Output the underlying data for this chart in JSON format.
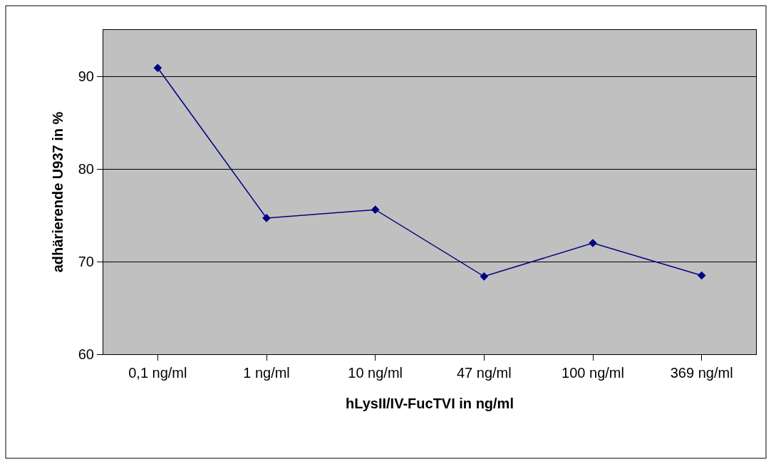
{
  "chart_data": {
    "type": "line",
    "xlabel": "hLysII/IV-FucTVI in ng/ml",
    "ylabel": "adhärierende U937 in %",
    "categories": [
      "0,1 ng/ml",
      "1 ng/ml",
      "10 ng/ml",
      "47 ng/ml",
      "100 ng/ml",
      "369 ng/ml"
    ],
    "series": [
      {
        "color": "#000080",
        "values": [
          90.9,
          74.7,
          75.6,
          68.4,
          72.0,
          68.5
        ]
      }
    ],
    "ylim": [
      60,
      95
    ],
    "yticks": [
      60,
      70,
      80,
      90
    ],
    "grid": "y",
    "marker": "diamond",
    "line_style": "solid"
  }
}
